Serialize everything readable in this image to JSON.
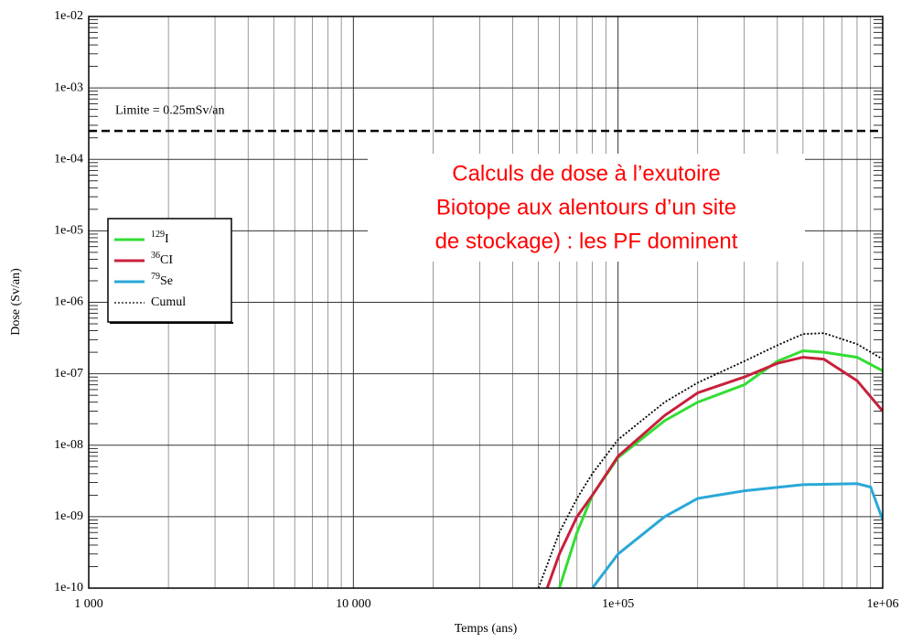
{
  "chart_data": {
    "type": "line",
    "title": [
      "Calculs de dose à l’exutoire",
      "Biotope aux alentours d’un site",
      "de stockage) : les PF dominent"
    ],
    "xlabel": "Temps (ans)",
    "ylabel": "Dose (Sv/an)",
    "xscale": "log",
    "yscale": "log",
    "grid": true,
    "minor_grid": true,
    "legend": "left",
    "xlim": [
      1000,
      1000000
    ],
    "xticks": [
      {
        "value": 1000,
        "label": "1 000"
      },
      {
        "value": 10000,
        "label": "10 000"
      },
      {
        "value": 100000,
        "label": "1e+05"
      },
      {
        "value": 1000000,
        "label": "1e+06"
      }
    ],
    "ylim": [
      1e-10,
      0.01
    ],
    "yticks": [
      {
        "value": 1e-10,
        "label": "1e-10"
      },
      {
        "value": 1e-09,
        "label": "1e-09"
      },
      {
        "value": 1e-08,
        "label": "1e-08"
      },
      {
        "value": 1e-07,
        "label": "1e-07"
      },
      {
        "value": 1e-06,
        "label": "1e-06"
      },
      {
        "value": 1e-05,
        "label": "1e-05"
      },
      {
        "value": 0.0001,
        "label": "1e-04"
      },
      {
        "value": 0.001,
        "label": "1e-03"
      },
      {
        "value": 0.01,
        "label": "1e-02"
      }
    ],
    "annotation": {
      "text": "Limite = 0.25mSv/an",
      "value": 0.00025
    },
    "series": [
      {
        "mass": "129",
        "name": "I",
        "color": "#33dd33",
        "x": [
          60000,
          70000,
          80000,
          100000,
          150000,
          200000,
          300000,
          400000,
          500000,
          600000,
          800000,
          1000000
        ],
        "values": [
          1e-10,
          6e-10,
          2e-09,
          6.7e-09,
          2.2e-08,
          4e-08,
          7e-08,
          1.5e-07,
          2.1e-07,
          2e-07,
          1.7e-07,
          1.1e-07
        ]
      },
      {
        "mass": "36",
        "name": "CI",
        "color": "#c8203c",
        "x": [
          54000,
          60000,
          70000,
          80000,
          100000,
          150000,
          200000,
          300000,
          400000,
          500000,
          600000,
          800000,
          1000000
        ],
        "values": [
          1e-10,
          3e-10,
          1e-09,
          2e-09,
          7e-09,
          2.6e-08,
          5.4e-08,
          9e-08,
          1.4e-07,
          1.7e-07,
          1.6e-07,
          8e-08,
          3e-08
        ]
      },
      {
        "mass": "79",
        "name": "Se",
        "color": "#2aa8d8",
        "x": [
          80000,
          100000,
          150000,
          200000,
          300000,
          500000,
          800000,
          900000,
          1000000
        ],
        "values": [
          1e-10,
          3e-10,
          1e-09,
          1.8e-09,
          2.3e-09,
          2.8e-09,
          2.9e-09,
          2.6e-09,
          9e-10
        ]
      },
      {
        "name": "Cumul",
        "color": "#000000",
        "dash": "dotted",
        "x": [
          50000,
          60000,
          70000,
          80000,
          100000,
          150000,
          200000,
          300000,
          400000,
          500000,
          600000,
          800000,
          1000000
        ],
        "values": [
          1e-10,
          6e-10,
          1.8e-09,
          4e-09,
          1.2e-08,
          4e-08,
          7.5e-08,
          1.5e-07,
          2.5e-07,
          3.6e-07,
          3.7e-07,
          2.6e-07,
          1.6e-07
        ]
      }
    ]
  }
}
